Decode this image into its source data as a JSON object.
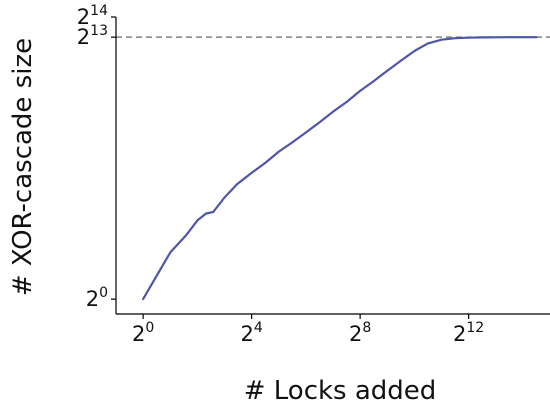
{
  "chart_data": {
    "type": "line",
    "title": "",
    "xlabel": "# Locks added",
    "ylabel": "# XOR-cascade size",
    "xscale": "log2",
    "yscale": "log2",
    "xlim": [
      0.5,
      32768
    ],
    "ylim": [
      0.6,
      16384
    ],
    "xticks": [
      {
        "value": 1,
        "base": "2",
        "exp": "0"
      },
      {
        "value": 16,
        "base": "2",
        "exp": "4"
      },
      {
        "value": 256,
        "base": "2",
        "exp": "8"
      },
      {
        "value": 4096,
        "base": "2",
        "exp": "12"
      }
    ],
    "yticks": [
      {
        "value": 1,
        "base": "2",
        "exp": "0"
      },
      {
        "value": 8192,
        "base": "2",
        "exp": "13"
      },
      {
        "value": 16384,
        "base": "2",
        "exp": "14"
      }
    ],
    "reference_line": {
      "y": 8192,
      "style": "dashed",
      "color": "#808080"
    },
    "grid": false,
    "series": [
      {
        "color": "#4f56a8",
        "x": [
          1,
          2,
          3,
          4,
          5,
          6,
          8,
          11,
          16,
          23,
          32,
          45,
          64,
          91,
          128,
          181,
          256,
          362,
          512,
          724,
          1024,
          1448,
          2048,
          2896,
          4096,
          5793,
          8192,
          11585,
          16384,
          23170
        ],
        "y": [
          1,
          5,
          9,
          15,
          19,
          20,
          33,
          52,
          77,
          110,
          160,
          219,
          308,
          440,
          630,
          880,
          1290,
          1810,
          2580,
          3640,
          5080,
          6610,
          7500,
          7900,
          8040,
          8120,
          8150,
          8170,
          8180,
          8190
        ]
      }
    ]
  }
}
